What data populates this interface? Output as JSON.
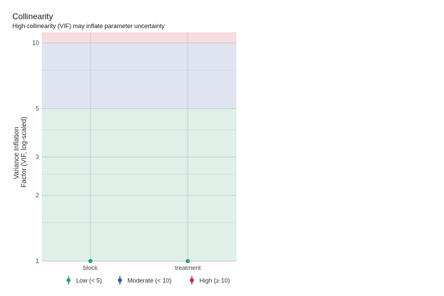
{
  "chart_data": {
    "type": "scatter",
    "title": "Collinearity",
    "subtitle": "High collinearity (VIF) may inflate parameter uncertainty",
    "xlabel": "",
    "ylabel_lines": [
      "Variance Inflation",
      "Factor (VIF, log-scaled)"
    ],
    "y_scale": "log",
    "ylim": [
      1,
      11.2
    ],
    "y_ticks": [
      1,
      2,
      3,
      5,
      10
    ],
    "y_minor_gridlines": [
      1.5,
      2.5,
      4,
      7.5
    ],
    "categories": [
      "block",
      "treatment"
    ],
    "points": [
      {
        "x": "block",
        "y": 1,
        "ci": [
          1,
          1
        ],
        "group": "Low (< 5)"
      },
      {
        "x": "treatment",
        "y": 1,
        "ci": [
          1,
          1
        ],
        "group": "Low (< 5)"
      }
    ],
    "zones": [
      {
        "name": "Low (< 5)",
        "from": 1,
        "to": 5,
        "color": "#dff0e8"
      },
      {
        "name": "Moderate (< 10)",
        "from": 5,
        "to": 10,
        "color": "#dfe4f0"
      },
      {
        "name": "High (≥ 10)",
        "from": 10,
        "to": 11.2,
        "color": "#f7dde1"
      }
    ],
    "legend": {
      "position": "bottom",
      "items": [
        {
          "label": "Low (< 5)",
          "color": "#2e9e78"
        },
        {
          "label": "Moderate (< 10)",
          "color": "#2d5a9e"
        },
        {
          "label": "High (≥ 10)",
          "color": "#c8283c"
        }
      ]
    },
    "grid": true
  }
}
